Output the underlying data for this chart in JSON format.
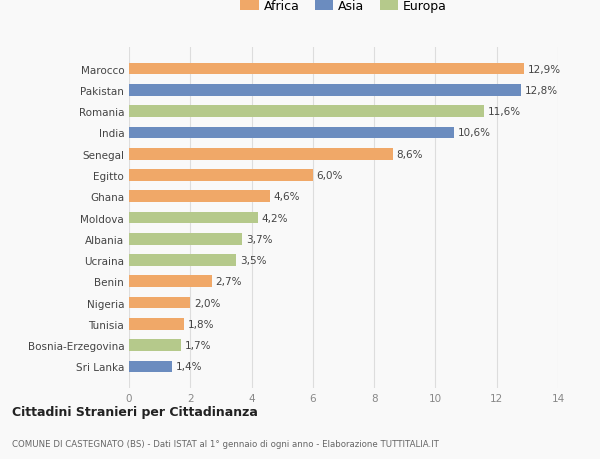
{
  "categories": [
    "Sri Lanka",
    "Bosnia-Erzegovina",
    "Tunisia",
    "Nigeria",
    "Benin",
    "Ucraina",
    "Albania",
    "Moldova",
    "Ghana",
    "Egitto",
    "Senegal",
    "India",
    "Romania",
    "Pakistan",
    "Marocco"
  ],
  "values": [
    1.4,
    1.7,
    1.8,
    2.0,
    2.7,
    3.5,
    3.7,
    4.2,
    4.6,
    6.0,
    8.6,
    10.6,
    11.6,
    12.8,
    12.9
  ],
  "colors": [
    "#6b8cbf",
    "#b5c98b",
    "#f0a868",
    "#f0a868",
    "#f0a868",
    "#b5c98b",
    "#b5c98b",
    "#b5c98b",
    "#f0a868",
    "#f0a868",
    "#f0a868",
    "#6b8cbf",
    "#b5c98b",
    "#6b8cbf",
    "#f0a868"
  ],
  "labels": [
    "1,4%",
    "1,7%",
    "1,8%",
    "2,0%",
    "2,7%",
    "3,5%",
    "3,7%",
    "4,2%",
    "4,6%",
    "6,0%",
    "8,6%",
    "10,6%",
    "11,6%",
    "12,8%",
    "12,9%"
  ],
  "legend": [
    {
      "label": "Africa",
      "color": "#f0a868"
    },
    {
      "label": "Asia",
      "color": "#6b8cbf"
    },
    {
      "label": "Europa",
      "color": "#b5c98b"
    }
  ],
  "xlim": [
    0,
    14
  ],
  "xticks": [
    0,
    2,
    4,
    6,
    8,
    10,
    12,
    14
  ],
  "title": "Cittadini Stranieri per Cittadinanza",
  "subtitle": "COMUNE DI CASTEGNATO (BS) - Dati ISTAT al 1° gennaio di ogni anno - Elaborazione TUTTITALIA.IT",
  "background_color": "#f9f9f9",
  "grid_color": "#dddddd",
  "bar_height": 0.55
}
